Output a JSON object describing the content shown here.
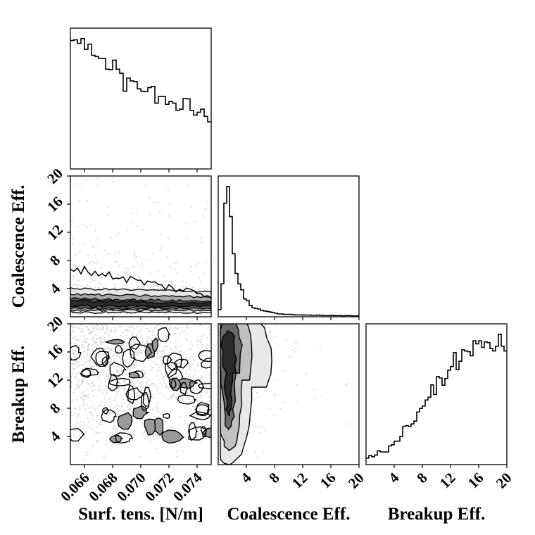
{
  "chart_data": {
    "type": "corner",
    "parameters": [
      "Surf. tens. [N/m]",
      "Coalescence Eff.",
      "Breakup Eff."
    ],
    "ranges": [
      [
        0.065,
        0.075
      ],
      [
        0,
        20
      ],
      [
        0,
        20
      ]
    ],
    "ticks": [
      [
        "0.066",
        "0.068",
        "0.070",
        "0.072",
        "0.074"
      ],
      [
        "4",
        "8",
        "12",
        "16",
        "20"
      ],
      [
        "4",
        "8",
        "12",
        "16",
        "20"
      ]
    ],
    "tick_values": [
      [
        0.066,
        0.068,
        0.07,
        0.072,
        0.074
      ],
      [
        4,
        8,
        12,
        16,
        20
      ],
      [
        4,
        8,
        12,
        16,
        20
      ]
    ],
    "histograms": [
      {
        "parameter": "Surf. tens. [N/m]",
        "counts": [
          537,
          540,
          525,
          545,
          500,
          522,
          475,
          470,
          462,
          462,
          417,
          415,
          455,
          417,
          400,
          325,
          380,
          368,
          365,
          335,
          325,
          323,
          340,
          345,
          275,
          303,
          303,
          270,
          282,
          275,
          245,
          250,
          295,
          293,
          245,
          225,
          237,
          250,
          220,
          197
        ]
      },
      {
        "parameter": "Coalescence Eff.",
        "counts": [
          30,
          137,
          472,
          542,
          417,
          262,
          180,
          137,
          112,
          74,
          67,
          47,
          37,
          34,
          32,
          27,
          24,
          22,
          20,
          17,
          15,
          12,
          12,
          10,
          10,
          10,
          9,
          8,
          8,
          8,
          7,
          7,
          7,
          6,
          6,
          7,
          6,
          5,
          5,
          5,
          6,
          5,
          5,
          5,
          4,
          5,
          5,
          4,
          4,
          4
        ]
      },
      {
        "parameter": "Breakup Eff.",
        "counts": [
          27,
          38,
          33,
          40,
          58,
          53,
          53,
          53,
          78,
          83,
          98,
          98,
          118,
          160,
          163,
          160,
          170,
          182,
          220,
          235,
          245,
          270,
          282,
          333,
          293,
          368,
          362,
          332,
          360,
          395,
          410,
          468,
          398,
          432,
          480,
          475,
          472,
          455,
          518,
          505,
          518,
          490,
          513,
          510,
          485,
          475,
          495,
          545,
          495,
          475
        ]
      }
    ],
    "pairs": [
      {
        "x": "Surf. tens. [N/m]",
        "y": "Coalescence Eff."
      },
      {
        "x": "Surf. tens. [N/m]",
        "y": "Breakup Eff."
      },
      {
        "x": "Coalescence Eff.",
        "y": "Breakup Eff."
      }
    ],
    "colors": {
      "line": "#000000",
      "points": "#bdbdbd"
    }
  }
}
